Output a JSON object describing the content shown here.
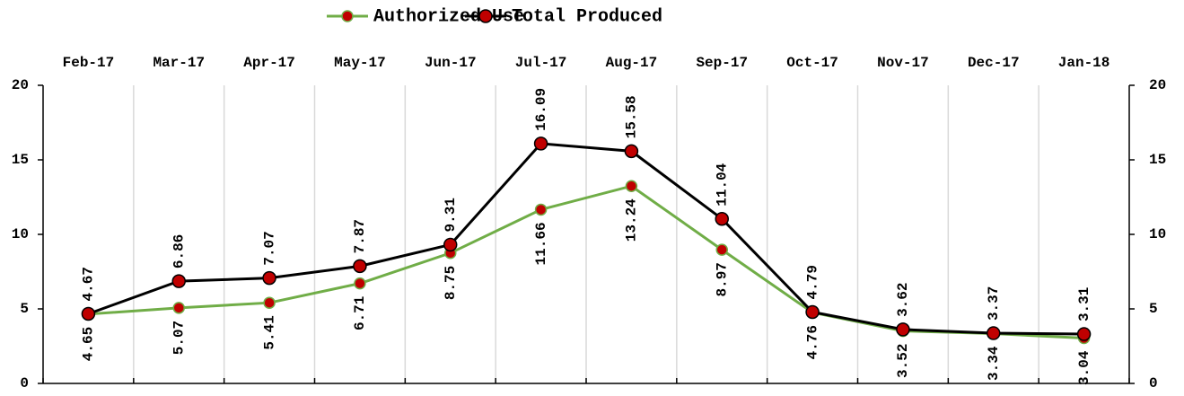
{
  "chart_data": {
    "type": "line",
    "categories": [
      "Feb-17",
      "Mar-17",
      "Apr-17",
      "May-17",
      "Jun-17",
      "Jul-17",
      "Aug-17",
      "Sep-17",
      "Oct-17",
      "Nov-17",
      "Dec-17",
      "Jan-18"
    ],
    "series": [
      {
        "name": "Authorized Use",
        "color": "#70ad47",
        "marker_color": "#c00000",
        "values": [
          4.65,
          5.07,
          5.41,
          6.71,
          8.75,
          11.66,
          13.24,
          8.97,
          4.76,
          3.52,
          3.34,
          3.04
        ]
      },
      {
        "name": "Total Produced",
        "color": "#000000",
        "marker_color": "#c00000",
        "values": [
          4.67,
          6.86,
          7.07,
          7.87,
          9.31,
          16.09,
          15.58,
          11.04,
          4.79,
          3.62,
          3.37,
          3.31
        ]
      }
    ],
    "ylim": [
      0,
      20
    ],
    "yticks": [
      0,
      5,
      10,
      15,
      20
    ],
    "y2lim": [
      0,
      20
    ],
    "y2ticks": [
      0,
      5,
      10,
      15,
      20
    ],
    "grid": true,
    "legend": "top"
  }
}
